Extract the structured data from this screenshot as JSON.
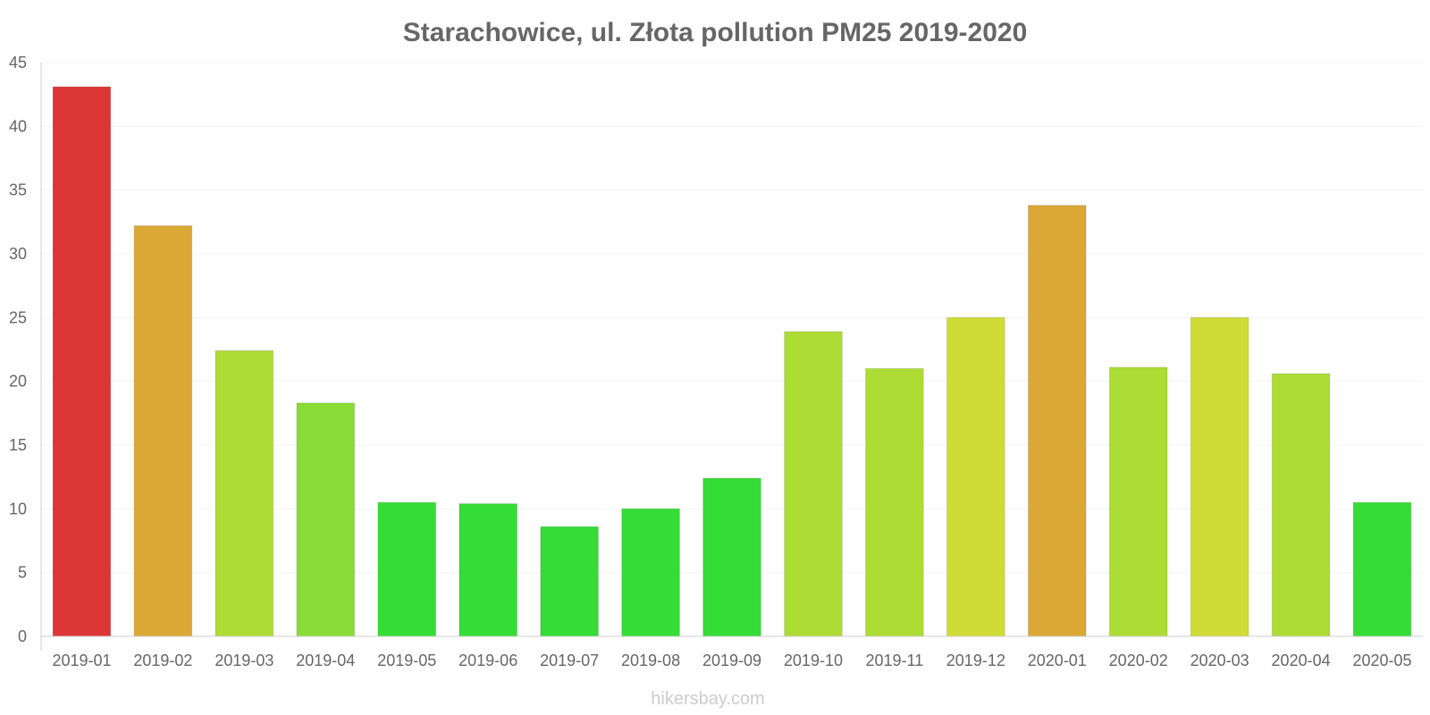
{
  "chart_data": {
    "type": "bar",
    "title": "Starachowice, ul. Złota pollution PM25 2019-2020",
    "xlabel": "",
    "ylabel": "",
    "ylim": [
      0,
      45
    ],
    "yticks": [
      0,
      5,
      10,
      15,
      20,
      25,
      30,
      35,
      40,
      45
    ],
    "grid": true,
    "legend": "none",
    "categories": [
      "2019-01",
      "2019-02",
      "2019-03",
      "2019-04",
      "2019-05",
      "2019-06",
      "2019-07",
      "2019-08",
      "2019-09",
      "2019-10",
      "2019-11",
      "2019-12",
      "2020-01",
      "2020-02",
      "2020-03",
      "2020-04",
      "2020-05"
    ],
    "values": [
      43.1,
      32.2,
      22.4,
      18.3,
      10.5,
      10.4,
      8.6,
      10.0,
      12.4,
      23.9,
      21.0,
      25.0,
      33.8,
      21.1,
      25.0,
      20.6,
      10.5
    ],
    "colors": [
      "#dc3535",
      "#dca835",
      "#addc35",
      "#89dc35",
      "#35dc35",
      "#35dc35",
      "#35dc35",
      "#35dc35",
      "#35dc35",
      "#addc35",
      "#addc35",
      "#cfdc35",
      "#dca835",
      "#addc35",
      "#cfdc35",
      "#addc35",
      "#35dc35"
    ]
  },
  "watermark": "hikersbay.com"
}
